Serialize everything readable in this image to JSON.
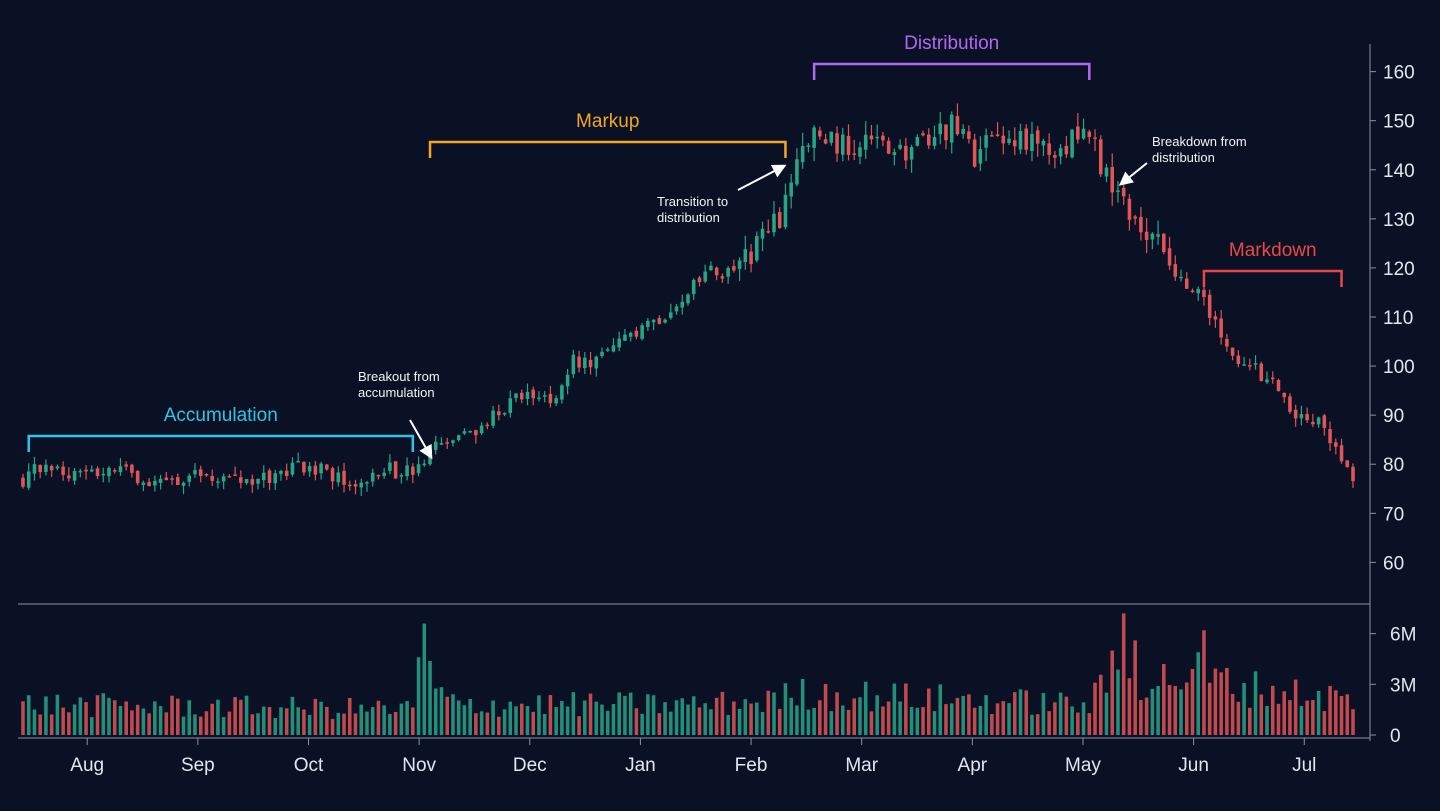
{
  "chart_data": {
    "type": "candlestick",
    "price_axis": {
      "ticks": [
        60,
        70,
        80,
        90,
        100,
        110,
        120,
        130,
        140,
        150,
        160
      ],
      "range": [
        56,
        164
      ]
    },
    "volume_axis": {
      "ticks": [
        0,
        3,
        6
      ],
      "tick_labels": [
        "0",
        "3M",
        "6M"
      ],
      "unit": "M",
      "range": [
        0,
        7.4
      ]
    },
    "months": [
      "Aug",
      "Sep",
      "Oct",
      "Nov",
      "Dec",
      "Jan",
      "Feb",
      "Mar",
      "Apr",
      "May",
      "Jun",
      "Jul"
    ],
    "colors": {
      "up": "#26a688",
      "down": "#e05555",
      "background": "#0a1124",
      "axis": "#8a93a6"
    },
    "phases": [
      {
        "name": "Accumulation",
        "color": "#2fc4e6",
        "from_candle": 1,
        "to_candle": 68
      },
      {
        "name": "Markup",
        "color": "#f2a623",
        "from_candle": 71,
        "to_candle": 133
      },
      {
        "name": "Distribution",
        "color": "#b368f2",
        "from_candle": 138,
        "to_candle": 186
      },
      {
        "name": "Markdown",
        "color": "#e94848",
        "from_candle": 206,
        "to_candle": 230
      }
    ],
    "annotations": [
      {
        "lines": [
          "Breakout from",
          "accumulation"
        ],
        "at_candle": 70
      },
      {
        "lines": [
          "Transition to",
          "distribution"
        ],
        "at_candle": 132
      },
      {
        "lines": [
          "Breakdown from",
          "distribution"
        ],
        "at_candle": 188
      }
    ],
    "waypoints": [
      [
        0,
        77
      ],
      [
        4,
        80
      ],
      [
        10,
        78
      ],
      [
        16,
        79
      ],
      [
        22,
        77
      ],
      [
        27,
        76
      ],
      [
        30,
        79
      ],
      [
        35,
        77
      ],
      [
        40,
        76
      ],
      [
        45,
        78
      ],
      [
        50,
        80
      ],
      [
        55,
        77
      ],
      [
        58,
        76
      ],
      [
        63,
        79
      ],
      [
        68,
        78
      ],
      [
        72,
        83
      ],
      [
        78,
        86
      ],
      [
        84,
        92
      ],
      [
        88,
        94
      ],
      [
        92,
        93
      ],
      [
        96,
        101
      ],
      [
        100,
        101
      ],
      [
        105,
        105
      ],
      [
        108,
        107
      ],
      [
        113,
        112
      ],
      [
        117,
        116
      ],
      [
        120,
        119
      ],
      [
        124,
        119
      ],
      [
        129,
        126
      ],
      [
        132,
        130
      ],
      [
        135,
        143
      ],
      [
        138,
        147
      ],
      [
        142,
        145
      ],
      [
        147,
        146
      ],
      [
        152,
        143
      ],
      [
        157,
        145
      ],
      [
        162,
        149
      ],
      [
        166,
        143
      ],
      [
        170,
        146
      ],
      [
        174,
        147
      ],
      [
        178,
        144
      ],
      [
        183,
        146
      ],
      [
        186,
        147
      ],
      [
        188,
        141
      ],
      [
        192,
        133
      ],
      [
        197,
        126
      ],
      [
        202,
        118
      ],
      [
        206,
        114
      ],
      [
        210,
        103
      ],
      [
        214,
        100
      ],
      [
        218,
        96
      ],
      [
        222,
        90
      ],
      [
        226,
        89
      ],
      [
        230,
        82
      ],
      [
        232,
        78
      ]
    ],
    "volume_level": [
      [
        0,
        1.9
      ],
      [
        68,
        1.6
      ],
      [
        69,
        2.6
      ],
      [
        70,
        5.1
      ],
      [
        72,
        2.8
      ],
      [
        75,
        1.9
      ],
      [
        120,
        1.9
      ],
      [
        132,
        2.2
      ],
      [
        135,
        2.6
      ],
      [
        186,
        1.9
      ],
      [
        190,
        3.6
      ],
      [
        195,
        3.2
      ],
      [
        205,
        3.8
      ],
      [
        212,
        3.0
      ],
      [
        232,
        2.2
      ]
    ]
  }
}
